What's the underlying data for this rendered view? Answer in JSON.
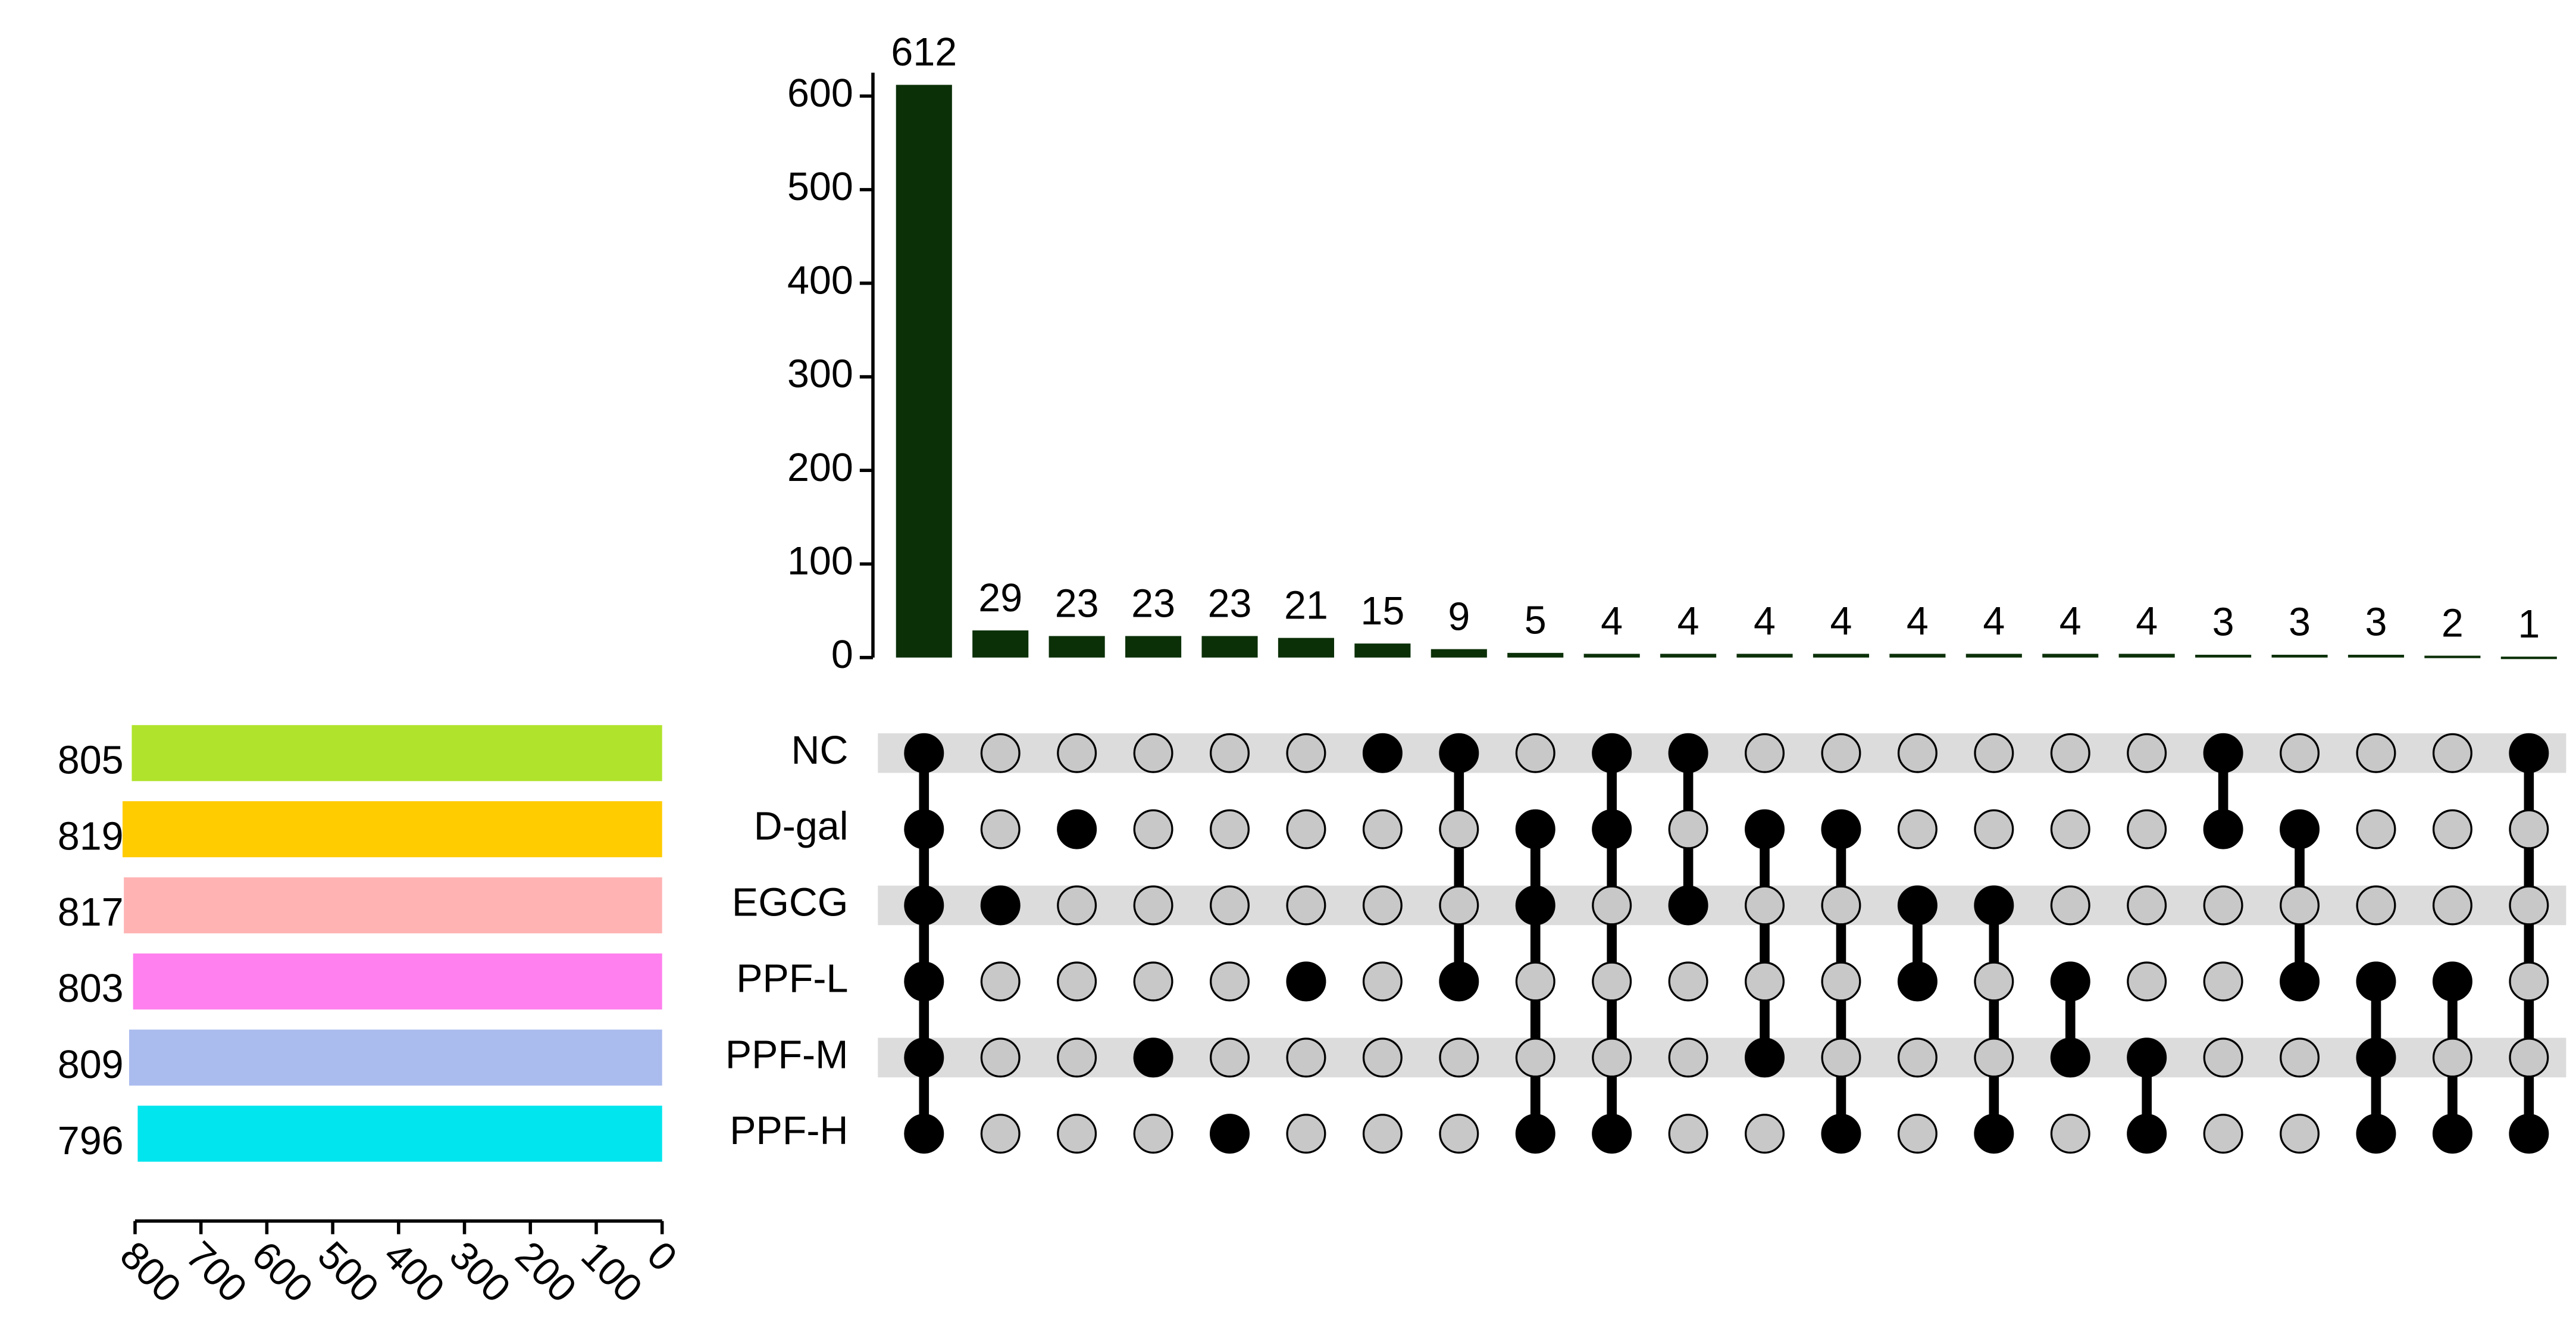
{
  "chart_data": {
    "type": "upset",
    "intersections": {
      "values": [
        612,
        29,
        23,
        23,
        23,
        21,
        15,
        9,
        5,
        4,
        4,
        4,
        4,
        4,
        4,
        4,
        4,
        3,
        3,
        3,
        2,
        1
      ],
      "color": "#0b3008",
      "ylim": [
        0,
        625
      ],
      "yticks": [
        0,
        100,
        200,
        300,
        400,
        500,
        600
      ],
      "matrix": [
        [
          1,
          1,
          1,
          1,
          1,
          1
        ],
        [
          0,
          0,
          1,
          0,
          0,
          0
        ],
        [
          0,
          1,
          0,
          0,
          0,
          0
        ],
        [
          0,
          0,
          0,
          0,
          1,
          0
        ],
        [
          0,
          0,
          0,
          0,
          0,
          1
        ],
        [
          0,
          0,
          0,
          1,
          0,
          0
        ],
        [
          1,
          0,
          0,
          0,
          0,
          0
        ],
        [
          1,
          0,
          0,
          1,
          0,
          0
        ],
        [
          0,
          1,
          1,
          0,
          0,
          1
        ],
        [
          1,
          1,
          0,
          0,
          0,
          1
        ],
        [
          1,
          0,
          1,
          0,
          0,
          0
        ],
        [
          0,
          1,
          0,
          0,
          1,
          0
        ],
        [
          0,
          1,
          0,
          0,
          0,
          1
        ],
        [
          0,
          0,
          1,
          1,
          0,
          0
        ],
        [
          0,
          0,
          1,
          0,
          0,
          1
        ],
        [
          0,
          0,
          0,
          1,
          1,
          0
        ],
        [
          0,
          0,
          0,
          0,
          1,
          1
        ],
        [
          1,
          1,
          0,
          0,
          0,
          0
        ],
        [
          0,
          1,
          0,
          1,
          0,
          0
        ],
        [
          0,
          0,
          0,
          1,
          1,
          1
        ],
        [
          0,
          0,
          0,
          1,
          0,
          1
        ],
        [
          1,
          0,
          0,
          0,
          0,
          1
        ]
      ]
    },
    "sets": {
      "names": [
        "NC",
        "D-gal",
        "EGCG",
        "PPF-L",
        "PPF-M",
        "PPF-H"
      ],
      "values": [
        805,
        819,
        817,
        803,
        809,
        796
      ],
      "colors": [
        "#b0e32c",
        "#ffcc00",
        "#ffb3b3",
        "#ff80ee",
        "#aabbee",
        "#00e5ee"
      ],
      "xlim": [
        800,
        0
      ],
      "xticks": [
        800,
        700,
        600,
        500,
        400,
        300,
        200,
        100,
        0
      ]
    }
  }
}
